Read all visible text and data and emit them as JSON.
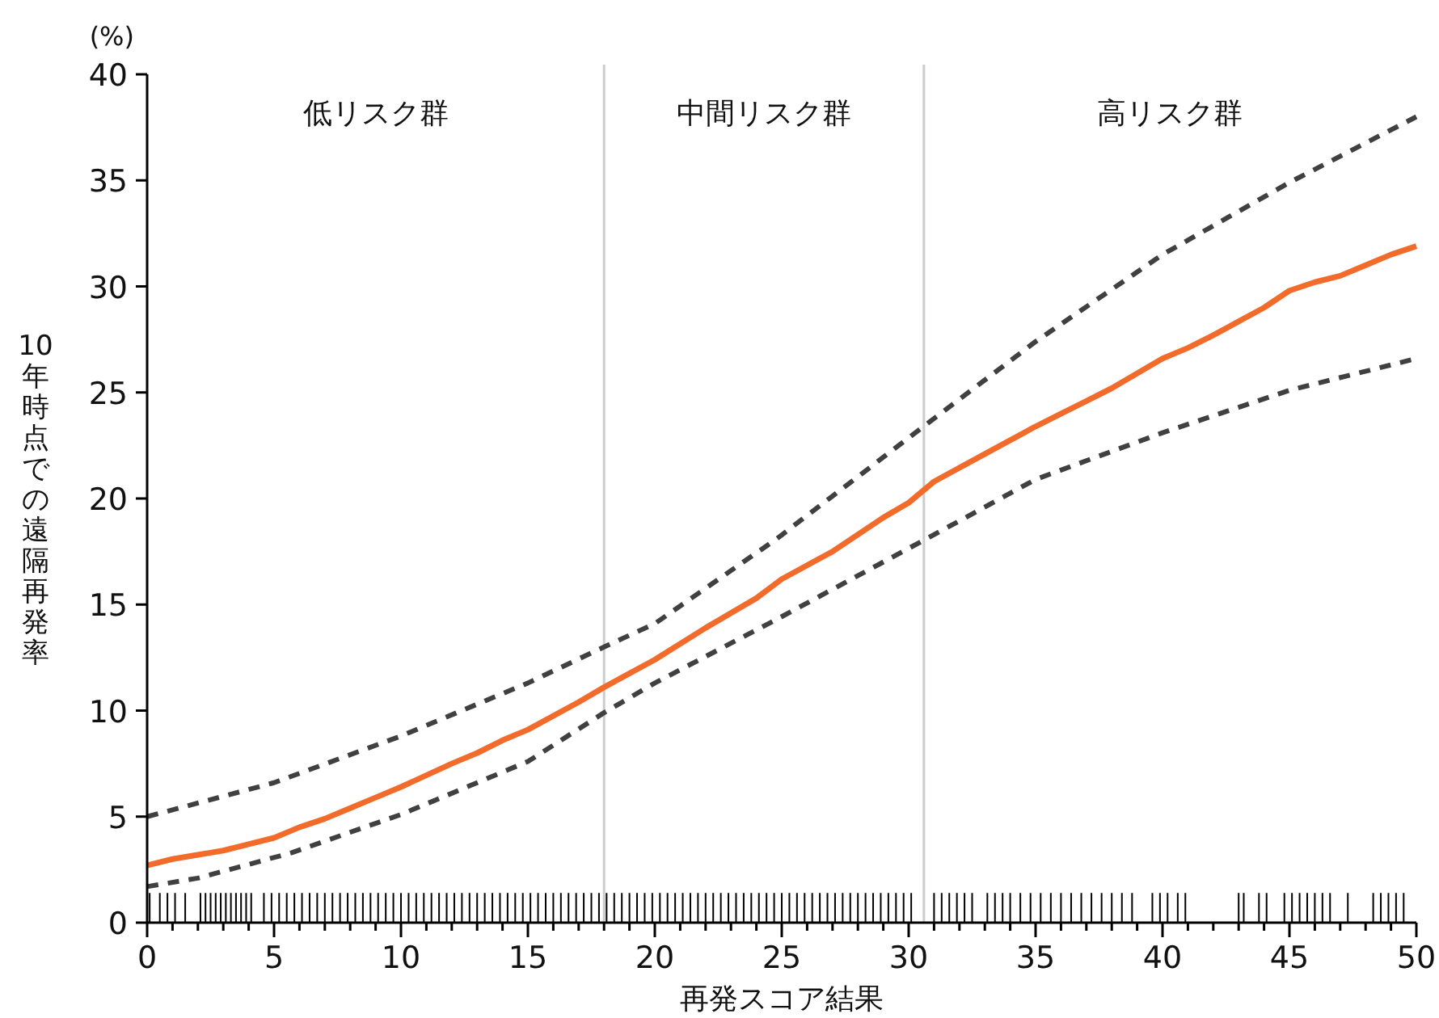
{
  "chart_data": {
    "type": "line",
    "xlabel": "再発スコア結果",
    "ylabel": "10年時点での遠隔再発率",
    "annotations": [
      "(%)",
      "低リスク群",
      "中間リスク群",
      "高リスク群"
    ],
    "xlim": [
      0,
      50
    ],
    "ylim": [
      0,
      40
    ],
    "xticks": [
      0,
      {
        "value": 1,
        "label": null
      },
      {
        "value": 2,
        "label": null
      },
      {
        "value": 3,
        "label": null
      },
      {
        "value": 4,
        "label": null
      },
      5,
      {
        "value": 6,
        "label": null
      },
      {
        "value": 7,
        "label": null
      },
      {
        "value": 8,
        "label": null
      },
      {
        "value": 9,
        "label": null
      },
      10,
      {
        "value": 11,
        "label": null
      },
      {
        "value": 12,
        "label": null
      },
      {
        "value": 13,
        "label": null
      },
      {
        "value": 14,
        "label": null
      },
      15,
      {
        "value": 16,
        "label": null
      },
      {
        "value": 17,
        "label": null
      },
      {
        "value": 18,
        "label": null
      },
      {
        "value": 19,
        "label": null
      },
      20,
      {
        "value": 21,
        "label": null
      },
      {
        "value": 22,
        "label": null
      },
      {
        "value": 23,
        "label": null
      },
      {
        "value": 24,
        "label": null
      },
      25,
      {
        "value": 26,
        "label": null
      },
      {
        "value": 27,
        "label": null
      },
      {
        "value": 28,
        "label": null
      },
      {
        "value": 29,
        "label": null
      },
      30,
      {
        "value": 31,
        "label": null
      },
      {
        "value": 32,
        "label": null
      },
      {
        "value": 33,
        "label": null
      },
      {
        "value": 34,
        "label": null
      },
      35,
      {
        "value": 36,
        "label": null
      },
      {
        "value": 37,
        "label": null
      },
      {
        "value": 38,
        "label": null
      },
      {
        "value": 39,
        "label": null
      },
      40,
      {
        "value": 41,
        "label": null
      },
      {
        "value": 42,
        "label": null
      },
      {
        "value": 43,
        "label": null
      },
      {
        "value": 44,
        "label": null
      },
      45,
      {
        "value": 46,
        "label": null
      },
      {
        "value": 47,
        "label": null
      },
      {
        "value": 48,
        "label": null
      },
      {
        "value": 49,
        "label": null
      },
      50
    ],
    "yticks": [
      0,
      5,
      10,
      15,
      20,
      25,
      30,
      35,
      40
    ],
    "grid": false,
    "ref_lines": [
      {
        "axis": "x",
        "value": 18,
        "color": "#cccccc"
      },
      {
        "axis": "x",
        "value": 30.6,
        "color": "#cccccc"
      }
    ],
    "series": [
      {
        "type": "bar",
        "color": "#000000",
        "x": [
          0.1,
          0.5,
          0.8,
          1.1,
          1.5,
          2.1,
          2.3,
          2.5,
          2.7,
          2.9,
          3.1,
          3.3,
          3.5,
          3.7,
          3.9,
          4.1,
          4.6,
          4.9,
          5.2,
          5.5,
          5.8,
          6.1,
          6.4,
          6.7,
          7.0,
          7.3,
          7.6,
          7.9,
          8.2,
          8.5,
          8.8,
          9.1,
          9.4,
          9.7,
          10.0,
          10.3,
          10.6,
          10.9,
          11.2,
          11.5,
          11.8,
          12.1,
          12.4,
          12.7,
          13.0,
          13.3,
          13.6,
          13.9,
          14.2,
          14.5,
          14.8,
          15.1,
          15.4,
          15.7,
          16.0,
          16.3,
          16.6,
          16.9,
          17.2,
          17.5,
          17.8,
          18.1,
          18.4,
          18.7,
          19.0,
          19.3,
          19.6,
          19.9,
          20.2,
          20.5,
          20.8,
          21.1,
          21.4,
          21.7,
          22.0,
          22.3,
          22.6,
          22.9,
          23.2,
          23.5,
          23.8,
          24.1,
          24.4,
          24.7,
          25.0,
          25.3,
          25.6,
          25.9,
          26.2,
          26.5,
          26.8,
          27.1,
          27.4,
          27.7,
          28.0,
          28.3,
          28.6,
          28.9,
          29.2,
          29.5,
          29.8,
          30.1,
          31.0,
          31.3,
          31.6,
          31.9,
          32.2,
          32.5,
          33.1,
          33.4,
          33.7,
          34.0,
          34.4,
          34.8,
          35.2,
          35.6,
          36.0,
          36.4,
          36.8,
          37.2,
          37.6,
          38.0,
          38.4,
          38.8,
          39.6,
          39.9,
          40.2,
          40.6,
          40.9,
          43.0,
          43.2,
          43.8,
          44.1,
          44.8,
          45.1,
          45.4,
          45.7,
          46.0,
          46.3,
          46.6,
          47.3,
          48.3,
          48.6,
          48.9,
          49.2,
          49.5
        ],
        "values": [
          1.4,
          1.4,
          1.4,
          1.4,
          1.4,
          1.4,
          1.4,
          1.4,
          1.4,
          1.4,
          1.4,
          1.4,
          1.4,
          1.4,
          1.4,
          1.4,
          1.4,
          1.4,
          1.4,
          1.4,
          1.4,
          1.4,
          1.4,
          1.4,
          1.4,
          1.4,
          1.4,
          1.4,
          1.4,
          1.4,
          1.4,
          1.4,
          1.4,
          1.4,
          1.4,
          1.4,
          1.4,
          1.4,
          1.4,
          1.4,
          1.4,
          1.4,
          1.4,
          1.4,
          1.4,
          1.4,
          1.4,
          1.4,
          1.4,
          1.4,
          1.4,
          1.4,
          1.4,
          1.4,
          1.4,
          1.4,
          1.4,
          1.4,
          1.4,
          1.4,
          1.4,
          1.4,
          1.4,
          1.4,
          1.4,
          1.4,
          1.4,
          1.4,
          1.4,
          1.4,
          1.4,
          1.4,
          1.4,
          1.4,
          1.4,
          1.4,
          1.4,
          1.4,
          1.4,
          1.4,
          1.4,
          1.4,
          1.4,
          1.4,
          1.4,
          1.4,
          1.4,
          1.4,
          1.4,
          1.4,
          1.4,
          1.4,
          1.4,
          1.4,
          1.4,
          1.4,
          1.4,
          1.4,
          1.4,
          1.4,
          1.4,
          1.4,
          1.4,
          1.4,
          1.4,
          1.4,
          1.4,
          1.4,
          1.4,
          1.4,
          1.4,
          1.4,
          1.4,
          1.4,
          1.4,
          1.4,
          1.4,
          1.4,
          1.4,
          1.4,
          1.4,
          1.4,
          1.4,
          1.4,
          1.4,
          1.4,
          1.4,
          1.4,
          1.4,
          1.4,
          1.4,
          1.4,
          1.4,
          1.4,
          1.4,
          1.4,
          1.4,
          1.4,
          1.4,
          1.4,
          1.4,
          1.4,
          1.4,
          1.4,
          1.4,
          1.4
        ]
      },
      {
        "color": "#f26b2a",
        "line_style": "solid",
        "x": [
          0,
          1,
          2,
          3,
          4,
          5,
          6,
          7,
          8,
          9,
          10,
          12,
          13,
          14,
          15,
          17,
          18,
          20,
          22,
          24,
          25,
          27,
          29,
          30,
          31,
          33,
          35,
          37,
          38,
          40,
          41,
          42,
          44,
          45,
          46,
          47,
          48,
          49,
          50
        ],
        "values": [
          2.7,
          3.0,
          3.2,
          3.4,
          3.7,
          4.0,
          4.5,
          4.9,
          5.4,
          5.9,
          6.4,
          7.5,
          8.0,
          8.6,
          9.1,
          10.4,
          11.1,
          12.4,
          13.9,
          15.3,
          16.2,
          17.5,
          19.1,
          19.8,
          20.8,
          22.1,
          23.4,
          24.6,
          25.2,
          26.6,
          27.1,
          27.7,
          29.0,
          29.8,
          30.2,
          30.5,
          31.0,
          31.5,
          31.9
        ]
      },
      {
        "color": "#404040",
        "line_style": "dashed",
        "x": [
          0,
          5,
          10,
          15,
          18,
          20,
          24.8,
          30.7,
          35,
          40,
          45,
          50
        ],
        "values": [
          5.0,
          6.6,
          8.8,
          11.3,
          13.0,
          14.1,
          18.1,
          23.5,
          27.4,
          31.5,
          34.9,
          38.0
        ]
      },
      {
        "color": "#404040",
        "line_style": "dashed",
        "x": [
          0,
          2,
          5.7,
          10,
          15,
          18,
          20,
          24.8,
          30.7,
          35,
          40,
          45,
          50
        ],
        "values": [
          1.7,
          2.1,
          3.3,
          5.1,
          7.6,
          9.9,
          11.3,
          14.3,
          18.1,
          20.9,
          23.1,
          25.1,
          26.6
        ]
      }
    ]
  }
}
